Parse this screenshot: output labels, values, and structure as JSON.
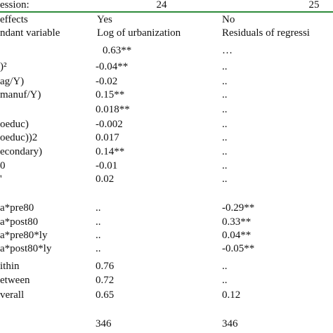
{
  "table": {
    "header": [
      "ession:",
      "24",
      "25"
    ],
    "rows": [
      [
        "effects",
        "Yes",
        "No"
      ],
      [
        "ndant variable",
        "Log of urbanization",
        "Residuals of regressi"
      ],
      [
        "",
        "0.63**",
        "…"
      ],
      [
        ")²",
        "-0.04**",
        ".."
      ],
      [
        "ag/Y)",
        "-0.02",
        ".."
      ],
      [
        "manuf/Y)",
        "0.15**",
        ".."
      ],
      [
        "",
        "0.018**",
        ".."
      ],
      [
        "oeduc)",
        "-0.002",
        ".."
      ],
      [
        "oeduc))2",
        "0.017",
        ".."
      ],
      [
        "econdary)",
        "0.14**",
        ".."
      ],
      [
        "0",
        "-0.01",
        ".."
      ],
      [
        "'",
        "0.02",
        ".."
      ],
      [
        "a*pre80",
        "..",
        "-0.29**"
      ],
      [
        "a*post80",
        "..",
        "0.33**"
      ],
      [
        "a*pre80*ly",
        "..",
        "0.04**"
      ],
      [
        "a*post80*ly",
        "..",
        "-0.05**"
      ],
      [
        "ithin",
        "0.76",
        ".."
      ],
      [
        "etween",
        "0.72",
        ".."
      ],
      [
        "verall",
        "0.65",
        "0.12"
      ],
      [
        "",
        "346",
        "346"
      ]
    ]
  }
}
